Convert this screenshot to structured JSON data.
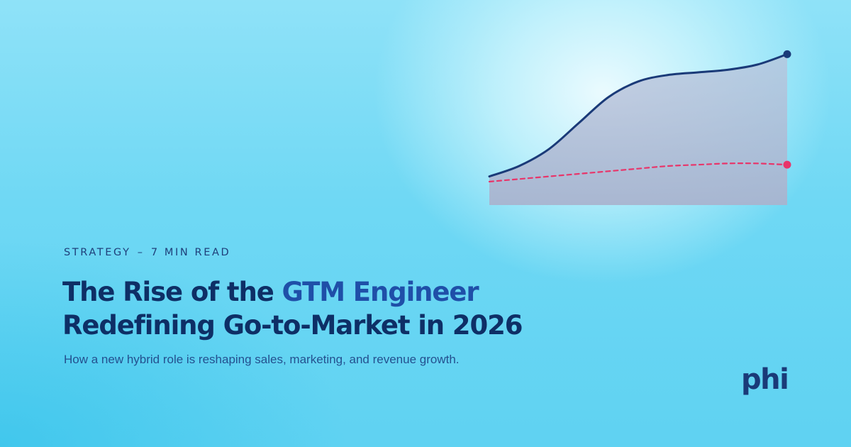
{
  "article": {
    "category": "STRATEGY",
    "separator": "–",
    "read_time": "7 MIN READ",
    "title_line1_prefix": "The Rise of the ",
    "title_line1_accent": "GTM Engineer",
    "title_line2": "Redefining Go-to-Market in 2026",
    "subtitle": "How a new hybrid role is reshaping sales, marketing, and revenue growth."
  },
  "brand": {
    "logo_text": "phi"
  },
  "colors": {
    "title": "#0e2f66",
    "accent": "#1f4fa8",
    "solid_line": "#1a3a78",
    "dashed_line": "#e8356a",
    "area_fill": "#b9c4dc"
  },
  "chart_data": {
    "type": "area",
    "title": "",
    "xlabel": "",
    "ylabel": "",
    "grid": false,
    "legend": "none",
    "x": [
      0,
      1,
      2,
      3,
      4,
      5,
      6,
      7,
      8,
      9,
      10
    ],
    "series": [
      {
        "style": "solid",
        "filled": true,
        "values": [
          22,
          30,
          43,
          63,
          83,
          95,
          100,
          102,
          104,
          108,
          116
        ],
        "end_marker": true
      },
      {
        "style": "dashed",
        "filled": false,
        "values": [
          18,
          20,
          22,
          24,
          26,
          28,
          30,
          31,
          32,
          32,
          31
        ],
        "end_marker": true
      }
    ],
    "ylim": [
      0,
      120
    ]
  }
}
